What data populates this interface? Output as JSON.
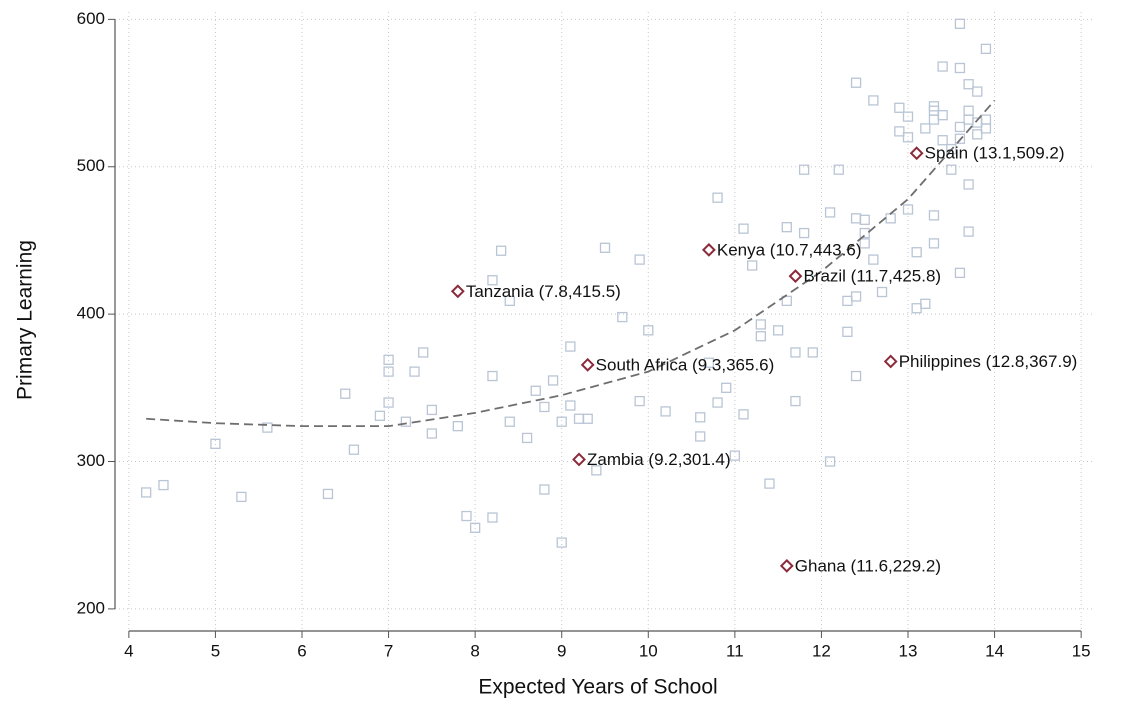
{
  "chart_data": {
    "type": "scatter",
    "x_label": "Expected Years of School",
    "y_label": "Primary Learning",
    "xlim": [
      3.84,
      15.16
    ],
    "ylim": [
      185,
      605
    ],
    "xticks": [
      4,
      5,
      6,
      7,
      8,
      9,
      10,
      11,
      12,
      13,
      14,
      15
    ],
    "yticks": [
      200,
      300,
      400,
      500,
      600
    ],
    "grid": true,
    "series": [
      {
        "kind": "points",
        "marker": "square",
        "color": "#b9c5d5",
        "x": [
          4.2,
          4.4,
          5.0,
          5.3,
          5.6,
          6.3,
          6.5,
          6.6,
          6.9,
          7.0,
          7.0,
          7.0,
          7.2,
          7.3,
          7.4,
          7.5,
          7.5,
          7.8,
          7.9,
          8.0,
          8.2,
          8.2,
          8.2,
          8.3,
          8.4,
          8.4,
          8.6,
          8.7,
          8.8,
          8.8,
          8.9,
          9.0,
          9.0,
          9.1,
          9.1,
          9.2,
          9.3,
          9.4,
          9.5,
          9.7,
          9.9,
          9.9,
          10.0,
          10.2,
          10.6,
          10.6,
          10.7,
          10.8,
          10.8,
          10.9,
          11.0,
          11.1,
          11.1,
          11.2,
          11.3,
          11.3,
          11.4,
          11.5,
          11.6,
          11.6,
          11.7,
          11.7,
          11.8,
          11.8,
          11.9,
          12.1,
          12.1,
          12.2,
          12.3,
          12.3,
          12.4,
          12.4,
          12.4,
          12.4,
          12.5,
          12.5,
          12.5,
          12.6,
          12.6,
          12.7,
          12.8,
          12.9,
          12.9,
          13.0,
          13.0,
          13.0,
          13.1,
          13.1,
          13.2,
          13.2,
          13.3,
          13.3,
          13.3,
          13.3,
          13.3,
          13.4,
          13.4,
          13.4,
          13.5,
          13.5,
          13.6,
          13.6,
          13.6,
          13.6,
          13.6,
          13.7,
          13.7,
          13.7,
          13.7,
          13.7,
          13.8,
          13.8,
          13.8,
          13.9,
          13.9,
          13.9
        ],
        "values": [
          279,
          284,
          312,
          276,
          323,
          278,
          346,
          308,
          331,
          369,
          361,
          340,
          327,
          361,
          374,
          335,
          319,
          324,
          263,
          255,
          262,
          358,
          423,
          443,
          327,
          409,
          316,
          348,
          337,
          281,
          355,
          245,
          327,
          378,
          338,
          329,
          329,
          294,
          445,
          398,
          437,
          341,
          389,
          334,
          330,
          317,
          367,
          479,
          340,
          350,
          304,
          458,
          332,
          433,
          393,
          385,
          285,
          389,
          459,
          409,
          341,
          374,
          498,
          455,
          374,
          300,
          469,
          498,
          388,
          409,
          412,
          557,
          465,
          358,
          464,
          455,
          448,
          545,
          437,
          415,
          465,
          540,
          524,
          534,
          520,
          471,
          442,
          404,
          407,
          526,
          541,
          538,
          532,
          467,
          448,
          568,
          535,
          518,
          498,
          512,
          597,
          567,
          527,
          519,
          428,
          556,
          538,
          532,
          488,
          456,
          551,
          530,
          522,
          580,
          532,
          526
        ]
      },
      {
        "kind": "line",
        "dash": true,
        "color": "#6e6e6e",
        "x": [
          4.2,
          5,
          6,
          7,
          8,
          9,
          10,
          11,
          12,
          13,
          14
        ],
        "values": [
          329,
          326,
          324,
          324,
          333,
          345,
          361,
          389,
          429,
          478,
          545
        ]
      },
      {
        "kind": "points",
        "marker": "diamond",
        "color": "#8b2a3a",
        "x": [
          7.8,
          10.7,
          11.7,
          13.1,
          9.3,
          12.8,
          9.2,
          11.6
        ],
        "values": [
          415.5,
          443.6,
          425.8,
          509.2,
          365.6,
          367.9,
          301.4,
          229.2
        ],
        "value_labels": [
          "Tanzania (7.8,415.5)",
          "Kenya (10.7,443.6)",
          "Brazil (11.7,425.8)",
          "Spain (13.1,509.2)",
          "South Africa (9.3,365.6)",
          "Philippines (12.8,367.9)",
          "Zambia (9.2,301.4)",
          "Ghana (11.6,229.2)"
        ]
      }
    ]
  }
}
